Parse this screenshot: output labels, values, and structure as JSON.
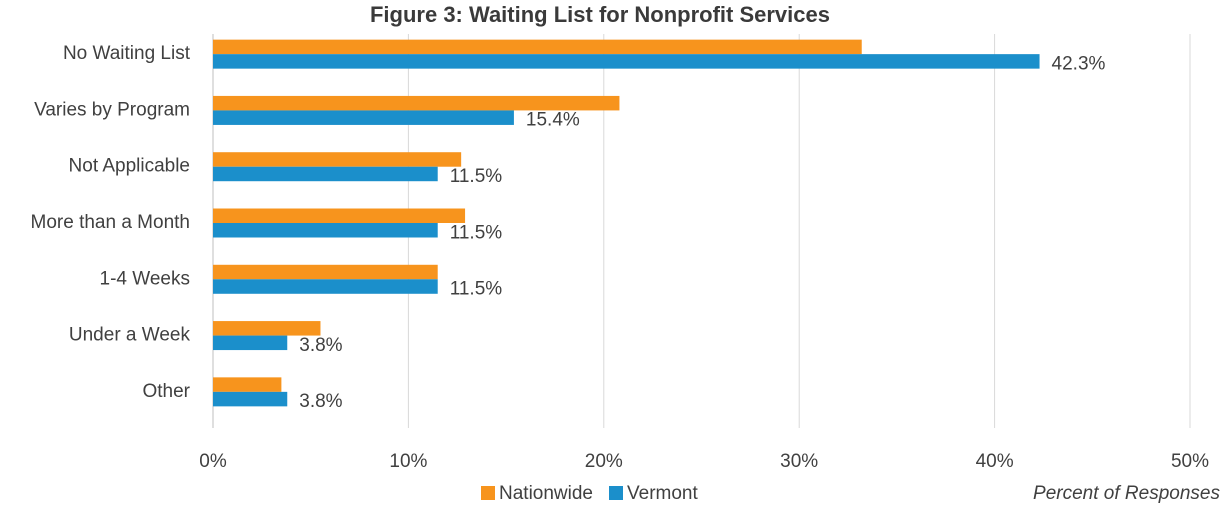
{
  "chart_data": {
    "type": "hbar",
    "title": "Figure 3: Waiting List for Nonprofit Services",
    "x_label": "Percent of Responses",
    "categories": [
      "No Waiting List",
      "Varies by Program",
      "Not Applicable",
      "More than a Month",
      "1-4 Weeks",
      "Under a Week",
      "Other"
    ],
    "series": [
      {
        "name": "Nationwide",
        "color": "#f7941d",
        "values": [
          33.2,
          20.8,
          12.7,
          12.9,
          11.5,
          5.5,
          3.5
        ]
      },
      {
        "name": "Vermont",
        "color": "#1b8fcb",
        "values": [
          42.3,
          15.4,
          11.5,
          11.5,
          11.5,
          3.8,
          3.8
        ],
        "value_labels": [
          "42.3%",
          "15.4%",
          "11.5%",
          "11.5%",
          "11.5%",
          "3.8%",
          "3.8%"
        ]
      }
    ],
    "xlim": [
      0,
      50
    ],
    "xticks": [
      {
        "value": 0,
        "label": "0%"
      },
      {
        "value": 10,
        "label": "10%"
      },
      {
        "value": 20,
        "label": "20%"
      },
      {
        "value": 30,
        "label": "30%"
      },
      {
        "value": 40,
        "label": "40%"
      },
      {
        "value": 50,
        "label": "50%"
      }
    ],
    "grid": true,
    "legend": "bottom"
  }
}
